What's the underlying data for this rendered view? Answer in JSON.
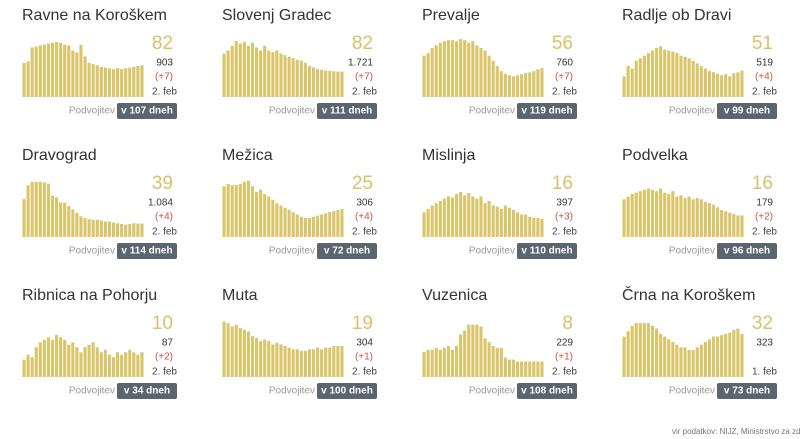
{
  "chart_data": [
    {
      "type": "bar",
      "title": "Ravne na Koroškem",
      "color": "#d9c56a",
      "ylim": [
        0,
        160
      ],
      "values": [
        88,
        92,
        128,
        130,
        133,
        135,
        138,
        140,
        142,
        140,
        135,
        133,
        120,
        115,
        135,
        105,
        88,
        85,
        82,
        78,
        76,
        74,
        72,
        75,
        72,
        74,
        76,
        78,
        80,
        82
      ],
      "value": 82,
      "total": "903",
      "change": "(+7)",
      "date": "2. feb",
      "doubling_label": "Podvojitev",
      "doubling": "v 107 dneh"
    },
    {
      "type": "bar",
      "title": "Slovenj Gradec",
      "color": "#d9c56a",
      "ylim": [
        0,
        200
      ],
      "values": [
        140,
        150,
        165,
        180,
        172,
        178,
        165,
        175,
        160,
        150,
        165,
        150,
        145,
        150,
        140,
        135,
        130,
        125,
        120,
        118,
        110,
        100,
        95,
        90,
        88,
        85,
        84,
        83,
        82,
        82
      ],
      "value": 82,
      "total": "1.721",
      "change": "(+7)",
      "date": "2. feb",
      "doubling_label": "Podvojitev",
      "doubling": "v 111 dneh"
    },
    {
      "type": "bar",
      "title": "Prevalje",
      "color": "#d9c56a",
      "ylim": [
        0,
        120
      ],
      "values": [
        80,
        85,
        95,
        100,
        105,
        108,
        110,
        110,
        108,
        112,
        110,
        105,
        108,
        100,
        95,
        90,
        80,
        70,
        60,
        50,
        45,
        42,
        40,
        42,
        44,
        46,
        48,
        50,
        54,
        56
      ],
      "value": 56,
      "total": "760",
      "change": "(+7)",
      "date": "2. feb",
      "doubling_label": "Podvojitev",
      "doubling": "v 119 dneh"
    },
    {
      "type": "bar",
      "title": "Radlje ob Dravi",
      "color": "#d9c56a",
      "ylim": [
        0,
        120
      ],
      "values": [
        40,
        60,
        55,
        70,
        75,
        80,
        85,
        90,
        95,
        98,
        92,
        90,
        88,
        85,
        80,
        78,
        75,
        70,
        65,
        60,
        55,
        50,
        48,
        45,
        42,
        44,
        40,
        46,
        48,
        51
      ],
      "value": 51,
      "total": "519",
      "change": "(+4)",
      "date": "2. feb",
      "doubling_label": "Podvojitev",
      "doubling": "v 99 dneh"
    },
    {
      "type": "bar",
      "title": "Dravograd",
      "color": "#d9c56a",
      "ylim": [
        0,
        180
      ],
      "values": [
        110,
        150,
        160,
        160,
        160,
        158,
        155,
        120,
        115,
        100,
        100,
        90,
        80,
        70,
        60,
        55,
        52,
        50,
        50,
        48,
        45,
        45,
        42,
        40,
        38,
        36,
        38,
        40,
        39,
        39
      ],
      "value": 39,
      "total": "1.084",
      "change": "(+4)",
      "date": "2. feb",
      "doubling_label": "Podvojitev",
      "doubling": "v 114 dneh"
    },
    {
      "type": "bar",
      "title": "Mežica",
      "color": "#d9c56a",
      "ylim": [
        0,
        55
      ],
      "values": [
        45,
        47,
        46,
        46,
        47,
        49,
        50,
        45,
        40,
        42,
        38,
        36,
        33,
        30,
        28,
        26,
        24,
        22,
        20,
        18,
        17,
        17,
        18,
        19,
        20,
        21,
        22,
        23,
        24,
        25
      ],
      "value": 25,
      "total": "306",
      "change": "(+4)",
      "date": "2. feb",
      "doubling_label": "Podvojitev",
      "doubling": "v 72 dneh"
    },
    {
      "type": "bar",
      "title": "Mislinja",
      "color": "#d9c56a",
      "ylim": [
        0,
        55
      ],
      "values": [
        22,
        25,
        28,
        30,
        32,
        34,
        36,
        35,
        38,
        40,
        37,
        39,
        36,
        34,
        36,
        30,
        32,
        28,
        27,
        25,
        28,
        26,
        24,
        22,
        20,
        20,
        18,
        17,
        17,
        16
      ],
      "value": 16,
      "total": "397",
      "change": "(+3)",
      "date": "2. feb",
      "doubling_label": "Podvojitev",
      "doubling": "v 110 dneh"
    },
    {
      "type": "bar",
      "title": "Podvelka",
      "color": "#d9c56a",
      "ylim": [
        0,
        46
      ],
      "values": [
        28,
        30,
        32,
        33,
        34,
        35,
        36,
        35,
        34,
        36,
        33,
        32,
        34,
        30,
        31,
        29,
        30,
        28,
        29,
        28,
        26,
        25,
        24,
        22,
        20,
        19,
        18,
        17,
        16,
        16
      ],
      "value": 16,
      "total": "179",
      "change": "(+2)",
      "date": "2. feb",
      "doubling_label": "Podvojitev",
      "doubling": "v 96 dneh"
    },
    {
      "type": "bar",
      "title": "Ribnica na Pohorju",
      "color": "#d9c56a",
      "ylim": [
        0,
        25
      ],
      "values": [
        7,
        9,
        8,
        12,
        14,
        15,
        16,
        15,
        17,
        16,
        15,
        13,
        14,
        12,
        10,
        12,
        13,
        14,
        12,
        10,
        11,
        9,
        8,
        10,
        9,
        10,
        11,
        10,
        9,
        10
      ],
      "value": 10,
      "total": "87",
      "change": "(+2)",
      "date": "2. feb",
      "doubling_label": "Podvojitev",
      "doubling": "v 34 dneh"
    },
    {
      "type": "bar",
      "title": "Muta",
      "color": "#d9c56a",
      "ylim": [
        0,
        38
      ],
      "values": [
        34,
        33,
        31,
        32,
        30,
        29,
        28,
        25,
        24,
        22,
        23,
        22,
        20,
        21,
        20,
        19,
        18,
        17,
        17,
        16,
        16,
        17,
        17,
        18,
        17,
        18,
        18,
        19,
        19,
        19
      ],
      "value": 19,
      "total": "304",
      "change": "(+1)",
      "date": "2. feb",
      "doubling_label": "Podvojitev",
      "doubling": "v 100 dneh"
    },
    {
      "type": "bar",
      "title": "Vuzenica",
      "color": "#d9c56a",
      "ylim": [
        0,
        32
      ],
      "values": [
        13,
        14,
        14,
        15,
        14,
        15,
        16,
        14,
        16,
        22,
        24,
        27,
        27,
        27,
        26,
        20,
        18,
        16,
        15,
        15,
        10,
        9,
        9,
        8,
        8,
        8,
        8,
        8,
        8,
        8
      ],
      "value": 8,
      "total": "229",
      "change": "(+1)",
      "date": "2. feb",
      "doubling_label": "Podvojitev",
      "doubling": "v 108 dneh"
    },
    {
      "type": "bar",
      "title": "Črna na Koroškem",
      "color": "#d9c56a",
      "ylim": [
        0,
        46
      ],
      "values": [
        30,
        34,
        38,
        40,
        40,
        40,
        40,
        38,
        36,
        32,
        30,
        28,
        26,
        24,
        22,
        22,
        20,
        20,
        22,
        24,
        26,
        28,
        30,
        30,
        31,
        32,
        33,
        35,
        36,
        32
      ],
      "value": 32,
      "total": "323",
      "change": "",
      "date": "1. feb",
      "doubling_label": "Podvojitev",
      "doubling": "v 73 dneh"
    }
  ],
  "footer": "vir podatkov: NIJZ, Ministrstvo za zdravje"
}
